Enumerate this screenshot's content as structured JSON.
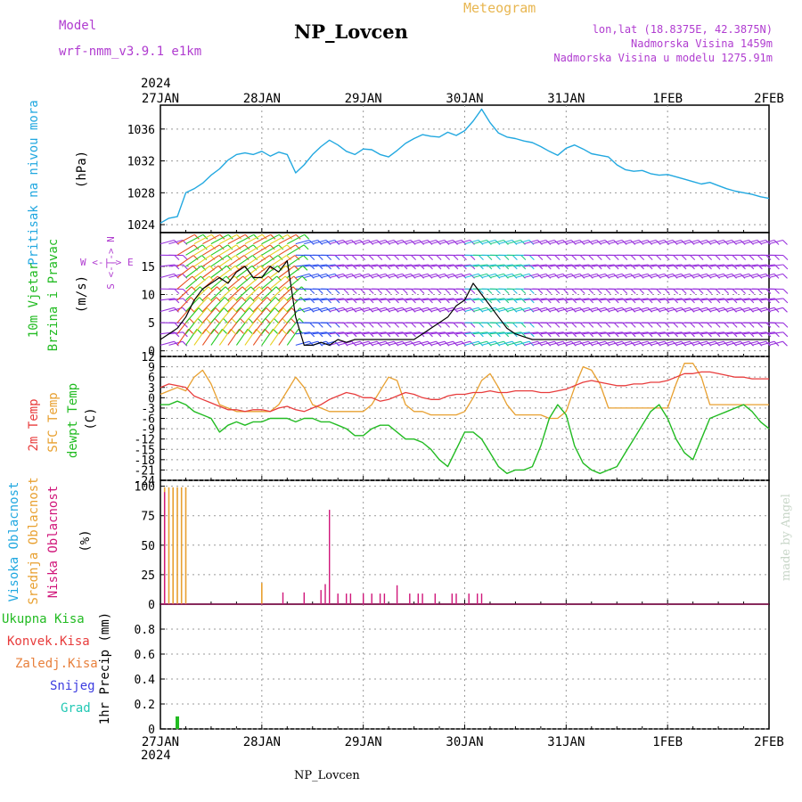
{
  "header": {
    "model_label": "Model",
    "model_name": "wrf-nmm_v3.9.1 e1km",
    "station": "NP_Lovcen",
    "meteogram_label": "Meteogram",
    "lonlat": "lon,lat (18.8375E, 42.3875N)",
    "altitude": "Nadmorska Visina 1459m",
    "model_altitude": "Nadmorska Visina u modelu 1275.91m",
    "year": "2024",
    "footer": "NP_Lovcen",
    "credit": "made by Angel"
  },
  "panels": {
    "pressure": {
      "label": "Pritisak na nivou mora",
      "unit": "(hPa)"
    },
    "wind": {
      "label1": "10m Vjetar",
      "label2": "Brzina i Pravac",
      "unit": "(m/s)",
      "compass_v": "S <-|-> N",
      "compass_h": "W <-|-> E"
    },
    "temperature": {
      "label1": "2m Temp",
      "label2": "SFC Temp",
      "label3": "dewpt Temp",
      "unit": "(C)"
    },
    "cloud": {
      "label1": "Visoka Oblacnost",
      "label2": "Srednja Oblacnost",
      "label3": "Niska Oblacnost",
      "unit": "(%)"
    },
    "precip": {
      "legend": [
        "Ukupna Kisa",
        "Konvek.Kisa",
        "Zaledj.Kisa",
        "Snijeg",
        "Grad"
      ],
      "unit": "1hr Precip (mm)"
    }
  },
  "colors": {
    "pressure": "#22a8e0",
    "wind_speed": "#000000",
    "temp2m": "#e83c3c",
    "sfc_temp": "#e8a030",
    "dewpoint": "#22bb22",
    "high_cloud": "#22a8e0",
    "mid_cloud": "#e8a030",
    "low_cloud": "#d0167a",
    "precip_total": "#22bb22",
    "grid": "#999999",
    "barb_purple": "#9933dd"
  },
  "chart_data": [
    {
      "type": "line",
      "title": "",
      "ylabel": "(hPa)",
      "ylim": [
        1023,
        1039
      ],
      "yticks": [
        1024,
        1028,
        1032,
        1036
      ],
      "grid": true,
      "x_unit": "hours since 27JAN 00UTC",
      "xticks": [
        0,
        24,
        48,
        72,
        96,
        120,
        144
      ],
      "xtick_labels": [
        "27JAN",
        "28JAN",
        "29JAN",
        "30JAN",
        "31JAN",
        "1FEB",
        "2FEB"
      ],
      "series": [
        {
          "name": "Pritisak na nivou mora",
          "x": [
            0,
            2,
            4,
            6,
            8,
            10,
            12,
            14,
            16,
            18,
            20,
            22,
            24,
            26,
            28,
            30,
            32,
            34,
            36,
            38,
            40,
            42,
            44,
            46,
            48,
            50,
            52,
            54,
            56,
            58,
            60,
            62,
            64,
            66,
            68,
            70,
            72,
            74,
            76,
            78,
            80,
            82,
            84,
            86,
            88,
            90,
            92,
            94,
            96,
            98,
            100,
            102,
            104,
            106,
            108,
            110,
            112,
            114,
            116,
            118,
            120,
            122,
            124,
            126,
            128,
            130,
            132,
            134,
            136,
            138,
            140,
            142,
            144
          ],
          "y": [
            1024.2,
            1024.8,
            1025.0,
            1028.0,
            1028.5,
            1029.2,
            1030.2,
            1031.0,
            1032.1,
            1032.8,
            1033.0,
            1032.8,
            1033.2,
            1032.6,
            1033.1,
            1032.8,
            1030.5,
            1031.5,
            1032.8,
            1033.8,
            1034.6,
            1034.0,
            1033.2,
            1032.8,
            1033.5,
            1033.4,
            1032.8,
            1032.5,
            1033.3,
            1034.2,
            1034.8,
            1035.3,
            1035.1,
            1035.0,
            1035.6,
            1035.2,
            1035.8,
            1037.0,
            1038.5,
            1036.8,
            1035.5,
            1035.0,
            1034.8,
            1034.5,
            1034.3,
            1033.8,
            1033.2,
            1032.7,
            1033.6,
            1034.0,
            1033.5,
            1032.9,
            1032.7,
            1032.5,
            1031.5,
            1030.9,
            1030.7,
            1030.8,
            1030.4,
            1030.2,
            1030.3,
            1030.0,
            1029.7,
            1029.4,
            1029.1,
            1029.3,
            1028.9,
            1028.5,
            1028.2,
            1028.0,
            1027.8,
            1027.5,
            1027.3
          ]
        }
      ]
    },
    {
      "type": "line",
      "title": "",
      "ylabel": "(m/s)",
      "ylim": [
        -1,
        21
      ],
      "yticks": [
        0,
        5,
        10,
        15
      ],
      "grid": true,
      "x_unit": "hours since 27JAN 00UTC",
      "series": [
        {
          "name": "Brzina",
          "x": [
            0,
            2,
            4,
            6,
            8,
            10,
            12,
            14,
            16,
            18,
            20,
            22,
            24,
            26,
            28,
            30,
            32,
            34,
            36,
            38,
            40,
            42,
            44,
            46,
            48,
            50,
            52,
            54,
            56,
            58,
            60,
            62,
            64,
            66,
            68,
            70,
            72,
            74,
            76,
            78,
            80,
            82,
            84,
            86,
            88,
            90,
            92,
            94,
            96,
            98,
            100,
            102,
            104,
            106,
            108,
            110,
            112,
            114,
            116,
            118,
            120,
            122,
            124,
            126,
            128,
            130,
            132,
            134,
            136,
            138,
            140,
            142,
            144
          ],
          "y": [
            2,
            3,
            4,
            6,
            9,
            11,
            12,
            13,
            12,
            14,
            15,
            13,
            13,
            15,
            14,
            16,
            6,
            1,
            1,
            1.5,
            1,
            2,
            1.5,
            2,
            2,
            2,
            2,
            2,
            2,
            2,
            2,
            3,
            4,
            5,
            6,
            8,
            9,
            12,
            10,
            8,
            6,
            4,
            3,
            2.5,
            2,
            2,
            2,
            2,
            2,
            2,
            2,
            2,
            2,
            2,
            2,
            2,
            2,
            2,
            2,
            2,
            2,
            2,
            2,
            2,
            2,
            2,
            2,
            2,
            2,
            2,
            2,
            2,
            2
          ]
        },
        {
          "name": "Pravac",
          "x": [],
          "y": []
        }
      ]
    },
    {
      "type": "line",
      "title": "",
      "ylabel": "(C)",
      "ylim": [
        -24,
        12
      ],
      "yticks": [
        -24,
        -21,
        -18,
        -15,
        -12,
        -9,
        -6,
        -3,
        0,
        3,
        6,
        9,
        12
      ],
      "grid": true,
      "x_unit": "hours since 27JAN 00UTC",
      "series": [
        {
          "name": "2m Temp",
          "x": [
            0,
            2,
            4,
            6,
            8,
            10,
            12,
            14,
            16,
            18,
            20,
            22,
            24,
            26,
            28,
            30,
            32,
            34,
            36,
            38,
            40,
            42,
            44,
            46,
            48,
            50,
            52,
            54,
            56,
            58,
            60,
            62,
            64,
            66,
            68,
            70,
            72,
            74,
            76,
            78,
            80,
            82,
            84,
            86,
            88,
            90,
            92,
            94,
            96,
            98,
            100,
            102,
            104,
            106,
            108,
            110,
            112,
            114,
            116,
            118,
            120,
            122,
            124,
            126,
            128,
            130,
            132,
            134,
            136,
            138,
            140,
            142,
            144
          ],
          "y": [
            3,
            4,
            3.5,
            3,
            0.5,
            -0.5,
            -1.5,
            -2.5,
            -3.5,
            -3.5,
            -4,
            -3.5,
            -3.5,
            -4,
            -3,
            -2.5,
            -3.5,
            -4,
            -3,
            -2,
            -0.5,
            0.5,
            1.5,
            1,
            0,
            0,
            -1,
            -0.5,
            0.5,
            1.5,
            1,
            0,
            -0.5,
            -0.5,
            0.5,
            1,
            1,
            1.5,
            1.5,
            2,
            1.5,
            1.5,
            2,
            2,
            2,
            1.5,
            1.5,
            2,
            2.5,
            3.5,
            4.5,
            5,
            4.5,
            4,
            3.5,
            3.5,
            4,
            4,
            4.5,
            4.5,
            5,
            6,
            7,
            7,
            7.5,
            7.5,
            7,
            6.5,
            6,
            6,
            5.5,
            5.5,
            5.5
          ]
        },
        {
          "name": "SFC Temp",
          "x": [
            0,
            2,
            4,
            6,
            8,
            10,
            12,
            14,
            16,
            18,
            20,
            22,
            24,
            26,
            28,
            30,
            32,
            34,
            36,
            38,
            40,
            42,
            44,
            46,
            48,
            50,
            52,
            54,
            56,
            58,
            60,
            62,
            64,
            66,
            68,
            70,
            72,
            74,
            76,
            78,
            80,
            82,
            84,
            86,
            88,
            90,
            92,
            94,
            96,
            98,
            100,
            102,
            104,
            106,
            108,
            110,
            112,
            114,
            116,
            118,
            120,
            122,
            124,
            126,
            128,
            130,
            132,
            134,
            136,
            138,
            140,
            142,
            144
          ],
          "y": [
            1,
            2,
            3,
            2,
            6,
            8,
            4,
            -2,
            -3,
            -4,
            -4,
            -4,
            -4,
            -4,
            -2,
            2,
            6,
            3,
            -2,
            -3,
            -4,
            -4,
            -4,
            -4,
            -4,
            -2,
            2,
            6,
            5,
            -2,
            -4,
            -4,
            -5,
            -5,
            -5,
            -5,
            -4,
            0,
            5,
            7,
            3,
            -2,
            -5,
            -5,
            -5,
            -5,
            -6,
            -6,
            -4,
            3,
            9,
            8,
            4,
            -3,
            -3,
            -3,
            -3,
            -3,
            -3,
            -3,
            -3,
            4,
            10,
            10,
            6,
            -2,
            -2,
            -2,
            -2,
            -2,
            -2,
            -2,
            -2
          ]
        },
        {
          "name": "dewpt Temp",
          "x": [
            0,
            2,
            4,
            6,
            8,
            10,
            12,
            14,
            16,
            18,
            20,
            22,
            24,
            26,
            28,
            30,
            32,
            34,
            36,
            38,
            40,
            42,
            44,
            46,
            48,
            50,
            52,
            54,
            56,
            58,
            60,
            62,
            64,
            66,
            68,
            70,
            72,
            74,
            76,
            78,
            80,
            82,
            84,
            86,
            88,
            90,
            92,
            94,
            96,
            98,
            100,
            102,
            104,
            106,
            108,
            110,
            112,
            114,
            116,
            118,
            120,
            122,
            124,
            126,
            128,
            130,
            132,
            134,
            136,
            138,
            140,
            142,
            144
          ],
          "y": [
            -2,
            -2,
            -1,
            -2,
            -4,
            -5,
            -6,
            -10,
            -8,
            -7,
            -8,
            -7,
            -7,
            -6,
            -6,
            -6,
            -7,
            -6,
            -6,
            -7,
            -7,
            -8,
            -9,
            -11,
            -11,
            -9,
            -8,
            -8,
            -10,
            -12,
            -12,
            -13,
            -15,
            -18,
            -20,
            -15,
            -10,
            -10,
            -12,
            -16,
            -20,
            -22,
            -21,
            -21,
            -20,
            -14,
            -6,
            -2,
            -5,
            -14,
            -19,
            -21,
            -22,
            -21,
            -20,
            -16,
            -12,
            -8,
            -4,
            -2,
            -6,
            -12,
            -16,
            -18,
            -12,
            -6,
            -5,
            -4,
            -3,
            -2,
            -4,
            -7,
            -9
          ]
        }
      ]
    },
    {
      "type": "bar",
      "title": "",
      "ylabel": "(%)",
      "ylim": [
        0,
        105
      ],
      "yticks": [
        0,
        25,
        50,
        75,
        100
      ],
      "grid": true,
      "x_unit": "hours since 27JAN 00UTC",
      "series": [
        {
          "name": "Visoka Oblacnost",
          "x": [],
          "y": []
        },
        {
          "name": "Srednja Oblacnost",
          "x": [
            1,
            2,
            3,
            4,
            5,
            6,
            24
          ],
          "y": [
            99,
            99,
            99,
            99,
            99,
            99,
            18
          ]
        },
        {
          "name": "Niska Oblacnost",
          "x": [
            1,
            29,
            34,
            38,
            39,
            40,
            42,
            44,
            45,
            48,
            50,
            52,
            53,
            56,
            59,
            61,
            62,
            65,
            69,
            70,
            73,
            75,
            76
          ],
          "y": [
            95,
            10,
            10,
            12,
            17,
            80,
            9,
            9,
            9,
            9,
            9,
            9,
            9,
            16,
            9,
            9,
            9,
            9,
            9,
            9,
            9,
            9,
            9
          ]
        }
      ]
    },
    {
      "type": "bar",
      "title": "",
      "ylabel": "1hr Precip (mm)",
      "ylim": [
        0,
        1.0
      ],
      "yticks": [
        0,
        0.2,
        0.4,
        0.6,
        0.8
      ],
      "grid": true,
      "x_unit": "hours since 27JAN 00UTC",
      "series": [
        {
          "name": "Ukupna Kisa",
          "x": [
            4
          ],
          "y": [
            0.1
          ]
        },
        {
          "name": "Konvek.Kisa",
          "x": [],
          "y": []
        },
        {
          "name": "Zaledj.Kisa",
          "x": [],
          "y": []
        },
        {
          "name": "Snijeg",
          "x": [],
          "y": []
        },
        {
          "name": "Grad",
          "x": [],
          "y": []
        }
      ]
    }
  ]
}
